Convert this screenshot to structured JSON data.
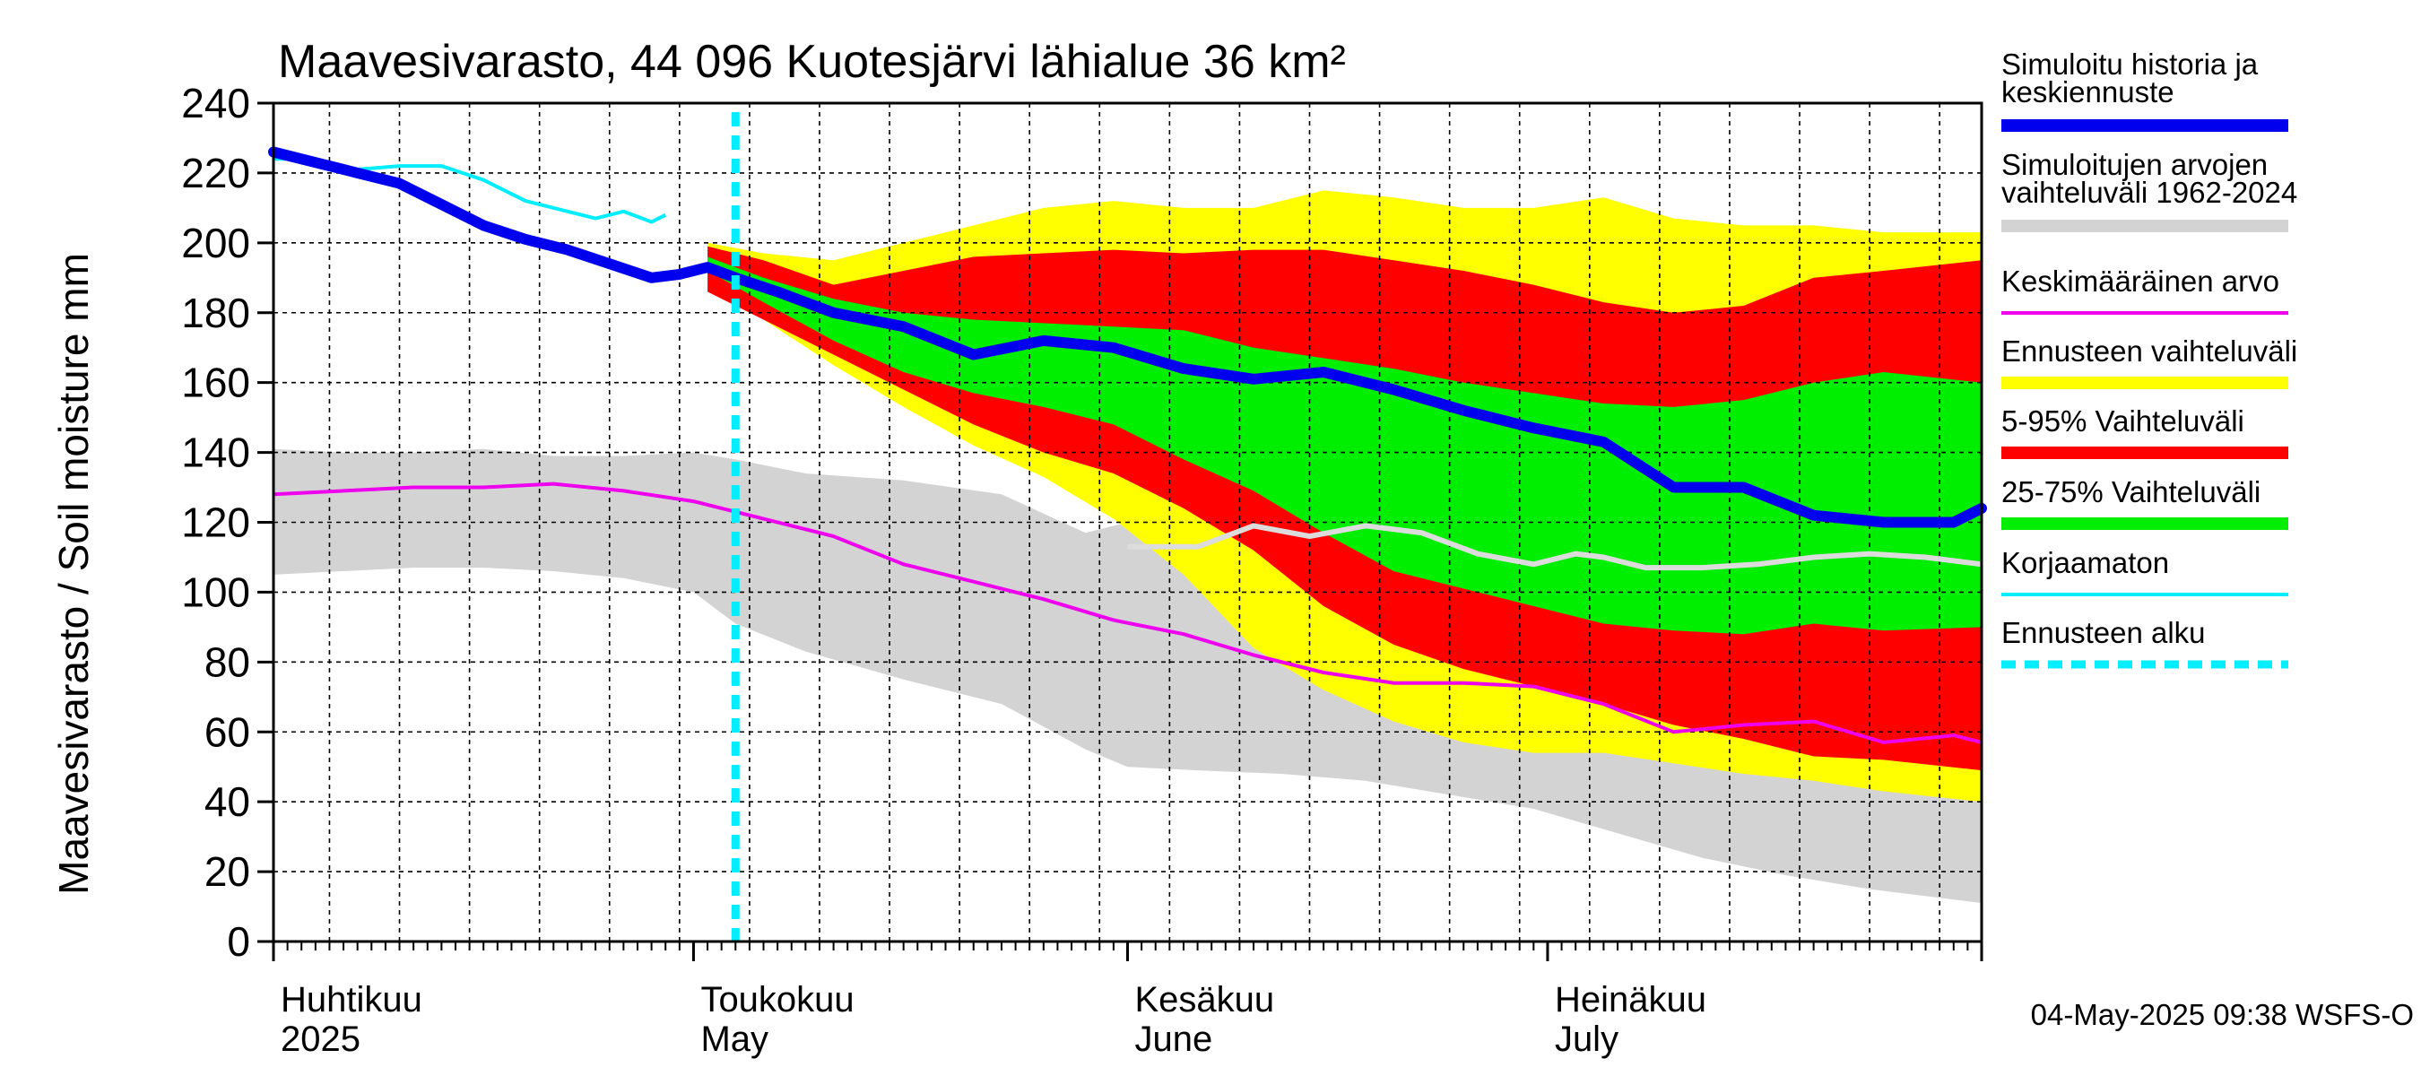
{
  "chart_data": {
    "type": "area",
    "title": "Maavesivarasto, 44 096 Kuotesjärvi lähialue 36 km²",
    "ylabel": "Maavesivarasto / Soil moisture   mm",
    "xlabel": "",
    "ylim": [
      0,
      240
    ],
    "yticks": [
      0,
      20,
      40,
      60,
      80,
      100,
      120,
      140,
      160,
      180,
      200,
      220,
      240
    ],
    "xlim_days": [
      0,
      122
    ],
    "forecast_start_day": 33,
    "month_labels": [
      {
        "day": 0,
        "line1": "Huhtikuu",
        "line2": "2025"
      },
      {
        "day": 30,
        "line1": "Toukokuu",
        "line2": "May"
      },
      {
        "day": 61,
        "line1": "Kesäkuu",
        "line2": "June"
      },
      {
        "day": 91,
        "line1": "Heinäkuu",
        "line2": "July"
      }
    ],
    "legend": [
      {
        "label1": "Simuloitu historia ja",
        "label2": "keskiennuste",
        "color": "#0000ee",
        "style": "thick"
      },
      {
        "label1": "Simuloitujen arvojen",
        "label2": "vaihteluväli 1962-2024",
        "color": "#d3d3d3",
        "style": "thick"
      },
      {
        "label1": "Keskimääräinen arvo",
        "label2": "",
        "color": "#ee00ee",
        "style": "thin"
      },
      {
        "label1": "Ennusteen vaihteluväli",
        "label2": "",
        "color": "#ffff00",
        "style": "thick"
      },
      {
        "label1": "5-95% Vaihteluväli",
        "label2": "",
        "color": "#ff0000",
        "style": "thick"
      },
      {
        "label1": "25-75% Vaihteluväli",
        "label2": "",
        "color": "#00ee00",
        "style": "thick"
      },
      {
        "label1": "Korjaamaton",
        "label2": "",
        "color": "#00eeff",
        "style": "thin"
      },
      {
        "label1": "Ennusteen alku",
        "label2": "",
        "color": "#00eeff",
        "style": "dashed"
      }
    ],
    "footer": "04-May-2025 09:38 WSFS-O",
    "series": {
      "historical_range": {
        "days": [
          0,
          5,
          10,
          15,
          20,
          25,
          30,
          33,
          38,
          45,
          52,
          58,
          61,
          66,
          72,
          78,
          84,
          90,
          96,
          102,
          108,
          114,
          122
        ],
        "upper": [
          141,
          140,
          140,
          141,
          139,
          139,
          140,
          138,
          134,
          132,
          128,
          117,
          120,
          110,
          100,
          88,
          78,
          72,
          67,
          64,
          62,
          58,
          52
        ],
        "lower": [
          105,
          106,
          107,
          107,
          106,
          104,
          100,
          91,
          83,
          75,
          68,
          55,
          50,
          49,
          48,
          46,
          42,
          38,
          31,
          24,
          19,
          15,
          11
        ]
      },
      "forecast_range": {
        "days": [
          31,
          35,
          40,
          45,
          50,
          55,
          60,
          65,
          70,
          75,
          80,
          85,
          90,
          95,
          100,
          105,
          110,
          115,
          122
        ],
        "upper": [
          200,
          197,
          195,
          200,
          205,
          210,
          212,
          210,
          210,
          215,
          213,
          210,
          210,
          213,
          207,
          205,
          205,
          203,
          203
        ],
        "lower": [
          191,
          178,
          165,
          153,
          142,
          133,
          121,
          105,
          84,
          72,
          63,
          57,
          54,
          54,
          51,
          48,
          46,
          43,
          40
        ]
      },
      "p5_95": {
        "days": [
          31,
          35,
          40,
          45,
          50,
          55,
          60,
          65,
          70,
          75,
          80,
          85,
          90,
          95,
          100,
          105,
          110,
          115,
          122
        ],
        "upper": [
          199,
          195,
          188,
          192,
          196,
          197,
          198,
          197,
          198,
          198,
          195,
          192,
          188,
          183,
          180,
          182,
          190,
          192,
          195
        ],
        "lower": [
          186,
          178,
          168,
          158,
          148,
          140,
          134,
          124,
          112,
          96,
          85,
          78,
          73,
          68,
          62,
          58,
          53,
          52,
          49
        ]
      },
      "p25_75": {
        "days": [
          31,
          35,
          40,
          45,
          50,
          55,
          60,
          65,
          70,
          75,
          80,
          85,
          90,
          95,
          100,
          105,
          110,
          115,
          122
        ],
        "upper": [
          196,
          190,
          184,
          180,
          178,
          177,
          176,
          175,
          170,
          167,
          164,
          160,
          157,
          154,
          153,
          155,
          160,
          163,
          160
        ],
        "lower": [
          192,
          183,
          172,
          163,
          157,
          153,
          148,
          138,
          129,
          117,
          106,
          101,
          96,
          91,
          89,
          88,
          91,
          89,
          90
        ]
      },
      "uncorrected_forecast": {
        "days": [
          61,
          66,
          70,
          74,
          78,
          82,
          86,
          90,
          93,
          95,
          98,
          102,
          106,
          110,
          114,
          118,
          122
        ],
        "values": [
          113,
          113,
          119,
          116,
          119,
          117,
          111,
          108,
          111,
          110,
          107,
          107,
          108,
          110,
          111,
          110,
          108
        ]
      },
      "mean": {
        "days": [
          0,
          5,
          10,
          15,
          20,
          25,
          30,
          35,
          40,
          45,
          50,
          55,
          60,
          65,
          70,
          75,
          80,
          85,
          90,
          95,
          100,
          105,
          110,
          115,
          120,
          122
        ],
        "values": [
          128,
          129,
          130,
          130,
          131,
          129,
          126,
          121,
          116,
          108,
          103,
          98,
          92,
          88,
          82,
          77,
          74,
          74,
          73,
          68,
          60,
          62,
          63,
          57,
          59,
          57
        ]
      },
      "uncorrected_history": {
        "days": [
          0,
          3,
          6,
          9,
          12,
          15,
          18,
          21,
          23,
          25,
          27,
          28
        ],
        "values": [
          224,
          224,
          221,
          222,
          222,
          218,
          212,
          209,
          207,
          209,
          206,
          208
        ]
      },
      "simulated_median": {
        "days": [
          0,
          3,
          6,
          9,
          12,
          15,
          18,
          21,
          24,
          27,
          29,
          31,
          33,
          36,
          40,
          45,
          50,
          55,
          60,
          65,
          70,
          75,
          80,
          85,
          90,
          95,
          100,
          105,
          110,
          115,
          120,
          122
        ],
        "values": [
          226,
          223,
          220,
          217,
          211,
          205,
          201,
          198,
          194,
          190,
          191,
          193,
          190,
          186,
          180,
          176,
          168,
          172,
          170,
          164,
          161,
          163,
          158,
          152,
          147,
          143,
          130,
          130,
          122,
          120,
          120,
          124
        ]
      }
    }
  }
}
